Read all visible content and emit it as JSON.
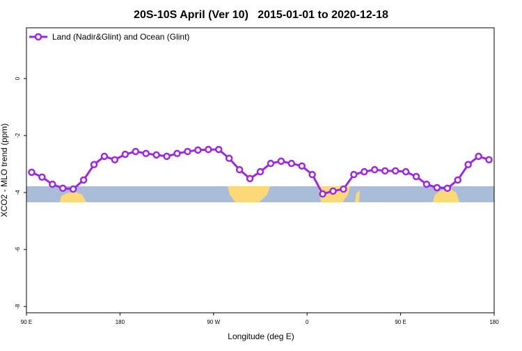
{
  "chart_data": {
    "type": "line",
    "title": "20S-10S April (Ver 10)   2015-01-01 to 2020-12-18",
    "x_label": "Longitude (deg E)",
    "y_label": "XCO2 - MLO trend (ppm)",
    "x": [
      95,
      105,
      115,
      125,
      135,
      145,
      155,
      165,
      175,
      185,
      195,
      205,
      215,
      225,
      235,
      245,
      255,
      265,
      275,
      285,
      295,
      305,
      315,
      325,
      335,
      345,
      355,
      365,
      375,
      385,
      395,
      405,
      415,
      425,
      435,
      445,
      455,
      465,
      475,
      485,
      495,
      505,
      515,
      525,
      535
    ],
    "series": [
      {
        "name": "Land (Nadir&Glint) and Ocean (Glint)",
        "color": "#9b27e0",
        "values": [
          -3.29,
          -3.46,
          -3.71,
          -3.85,
          -3.88,
          -3.56,
          -3.02,
          -2.73,
          -2.85,
          -2.66,
          -2.56,
          -2.63,
          -2.68,
          -2.73,
          -2.63,
          -2.56,
          -2.51,
          -2.49,
          -2.49,
          -2.8,
          -3.2,
          -3.51,
          -3.27,
          -2.98,
          -2.9,
          -2.98,
          -3.07,
          -3.37,
          -4.05,
          -3.95,
          -3.88,
          -3.37,
          -3.27,
          -3.2,
          -3.24,
          -3.24,
          -3.27,
          -3.44,
          -3.71,
          -3.83,
          -3.85,
          -3.56,
          -3.02,
          -2.73,
          -2.85
        ]
      }
    ],
    "xlim": [
      90,
      540
    ],
    "xticks": [
      {
        "value": 90,
        "label": "90 E"
      },
      180,
      {
        "value": 270,
        "label": "90 W"
      },
      {
        "value": 360,
        "label": "0"
      },
      {
        "value": 450,
        "label": "90 E"
      },
      {
        "value": 540,
        "label": "180"
      }
    ],
    "ylim": [
      -8.22,
      1.78
    ],
    "yticks": [
      0,
      -2,
      -4,
      -6,
      -8
    ],
    "legend": "top-left"
  }
}
